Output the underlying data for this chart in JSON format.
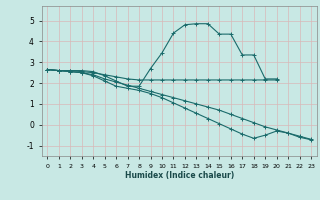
{
  "xlabel": "Humidex (Indice chaleur)",
  "xlim": [
    -0.5,
    23.5
  ],
  "ylim": [
    -1.5,
    5.7
  ],
  "yticks": [
    -1,
    0,
    1,
    2,
    3,
    4,
    5
  ],
  "xticks": [
    0,
    1,
    2,
    3,
    4,
    5,
    6,
    7,
    8,
    9,
    10,
    11,
    12,
    13,
    14,
    15,
    16,
    17,
    18,
    19,
    20,
    21,
    22,
    23
  ],
  "bg_color": "#c8e8e4",
  "grid_color": "#b0d4d0",
  "line_color": "#1a6b6b",
  "lines": [
    {
      "x": [
        0,
        1,
        2,
        3,
        4,
        5,
        6,
        7,
        8,
        9,
        10,
        11,
        12,
        13,
        14,
        15,
        16,
        17,
        18,
        19,
        20
      ],
      "y": [
        2.65,
        2.6,
        2.6,
        2.6,
        2.55,
        2.35,
        2.1,
        1.85,
        1.85,
        2.7,
        3.45,
        4.4,
        4.8,
        4.85,
        4.85,
        4.35,
        4.35,
        3.35,
        3.35,
        2.2,
        2.2
      ]
    },
    {
      "x": [
        0,
        1,
        2,
        3,
        4,
        5,
        6,
        7,
        8,
        9,
        10,
        11,
        12,
        13,
        14,
        15,
        16,
        17,
        18,
        19,
        20
      ],
      "y": [
        2.65,
        2.6,
        2.6,
        2.55,
        2.5,
        2.4,
        2.3,
        2.2,
        2.15,
        2.15,
        2.15,
        2.15,
        2.15,
        2.15,
        2.15,
        2.15,
        2.15,
        2.15,
        2.15,
        2.15,
        2.15
      ]
    },
    {
      "x": [
        0,
        1,
        2,
        3,
        4,
        5,
        6,
        7,
        8,
        9,
        10,
        11,
        12,
        13,
        14,
        15,
        16,
        17,
        18,
        19,
        20,
        21,
        22,
        23
      ],
      "y": [
        2.65,
        2.6,
        2.55,
        2.5,
        2.4,
        2.2,
        2.05,
        1.9,
        1.75,
        1.6,
        1.45,
        1.3,
        1.15,
        1.0,
        0.85,
        0.7,
        0.5,
        0.3,
        0.1,
        -0.1,
        -0.25,
        -0.4,
        -0.55,
        -0.7
      ]
    },
    {
      "x": [
        0,
        1,
        2,
        3,
        4,
        5,
        6,
        7,
        8,
        9,
        10,
        11,
        12,
        13,
        14,
        15,
        16,
        17,
        18,
        19,
        20,
        21,
        22,
        23
      ],
      "y": [
        2.65,
        2.6,
        2.55,
        2.5,
        2.35,
        2.1,
        1.85,
        1.75,
        1.65,
        1.5,
        1.3,
        1.05,
        0.8,
        0.55,
        0.3,
        0.05,
        -0.2,
        -0.45,
        -0.65,
        -0.5,
        -0.3,
        -0.4,
        -0.6,
        -0.72
      ]
    }
  ]
}
